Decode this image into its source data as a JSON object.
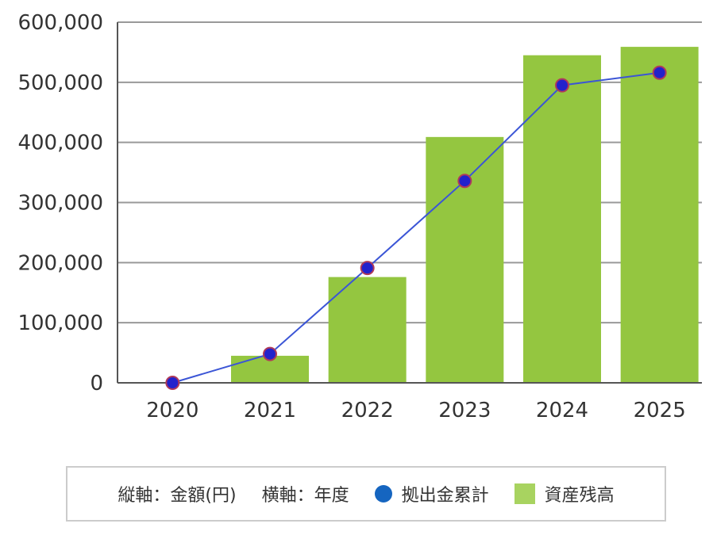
{
  "chart_data": {
    "type": "bar",
    "categories": [
      "2020",
      "2021",
      "2022",
      "2023",
      "2024",
      "2025"
    ],
    "series": [
      {
        "name": "資産残高",
        "type": "bar",
        "values": [
          0,
          45000,
          176000,
          409000,
          545000,
          559000
        ]
      },
      {
        "name": "拠出金累計",
        "type": "line",
        "values": [
          0,
          48000,
          191000,
          336000,
          495000,
          516000
        ]
      }
    ],
    "ylim": [
      0,
      600000
    ],
    "yticks": [
      "0",
      "100,000",
      "200,000",
      "300,000",
      "400,000",
      "500,000",
      "600,000"
    ],
    "grid": true,
    "legend_position": "bottom"
  },
  "legend": {
    "y_axis_note": "縦軸：金額(円)",
    "x_axis_note": "横軸：年度",
    "line_label": "拠出金累計",
    "bar_label": "資産残高"
  },
  "colors": {
    "bar": "#94c640",
    "line": "#3b55d6",
    "marker": "#2222cc",
    "marker_edge": "#b03a5a",
    "grid": "#999999",
    "legend_dot": "#1565c0",
    "legend_square": "#a8d360"
  }
}
